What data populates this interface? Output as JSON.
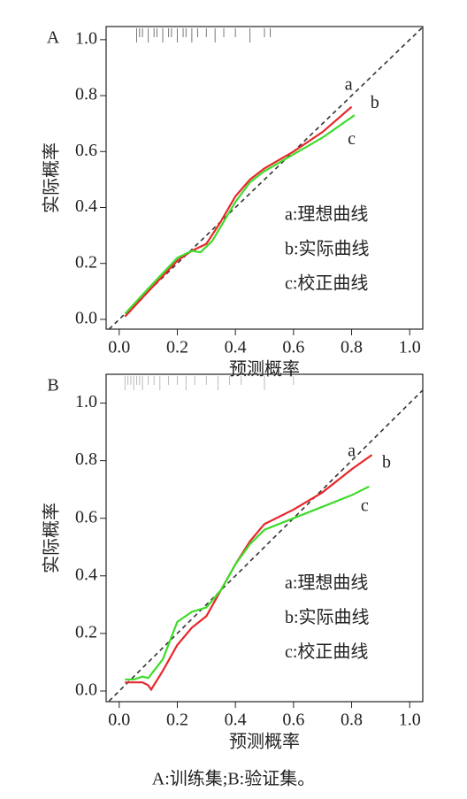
{
  "chart_data": [
    {
      "type": "line",
      "panel": "A",
      "x_label": "预测概率",
      "y_label": "实际概率",
      "xlim": [
        -0.045,
        1.045
      ],
      "ylim": [
        -0.035,
        1.047
      ],
      "xticks": [
        {
          "value": 0,
          "label": "0.0"
        },
        0.2,
        0.4,
        0.6,
        0.8,
        {
          "value": 1,
          "label": "1.0"
        }
      ],
      "yticks": [
        {
          "value": 0,
          "label": "0.0"
        },
        0.2,
        0.4,
        0.6,
        0.8,
        {
          "value": 1,
          "label": "1.0"
        }
      ],
      "rug": [
        0.06,
        0.07,
        0.08,
        0.1,
        0.12,
        0.13,
        0.15,
        0.17,
        0.18,
        0.2,
        0.22,
        0.23,
        0.25,
        0.27,
        0.3,
        0.33,
        0.36,
        0.4,
        0.45,
        0.5,
        0.52
      ],
      "rug_color": "#777777",
      "series": [
        {
          "name": "a:理想曲线",
          "label": "a",
          "label_x": 0.79,
          "label_y": 0.835,
          "color": "#333333",
          "style": "dashed",
          "x": [
            -0.035,
            1.045
          ],
          "values": [
            -0.035,
            1.045
          ]
        },
        {
          "name": "b:实际曲线",
          "label": "b",
          "label_x": 0.88,
          "label_y": 0.77,
          "color": "#e8262b",
          "style": "solid",
          "x": [
            0.02,
            0.1,
            0.2,
            0.25,
            0.3,
            0.35,
            0.4,
            0.45,
            0.5,
            0.6,
            0.7,
            0.8
          ],
          "values": [
            0.01,
            0.1,
            0.21,
            0.245,
            0.27,
            0.35,
            0.44,
            0.5,
            0.54,
            0.6,
            0.67,
            0.76
          ]
        },
        {
          "name": "c:校正曲线",
          "label": "c",
          "label_x": 0.8,
          "label_y": 0.64,
          "color": "#3ddc2a",
          "style": "solid",
          "x": [
            0.02,
            0.1,
            0.2,
            0.25,
            0.28,
            0.32,
            0.4,
            0.45,
            0.5,
            0.6,
            0.7,
            0.81
          ],
          "values": [
            0.02,
            0.11,
            0.22,
            0.245,
            0.24,
            0.28,
            0.42,
            0.49,
            0.53,
            0.59,
            0.65,
            0.73
          ]
        }
      ]
    },
    {
      "type": "line",
      "panel": "B",
      "x_label": "预测概率",
      "y_label": "实际概率",
      "xlim": [
        -0.045,
        1.045
      ],
      "ylim": [
        -0.037,
        1.1
      ],
      "xticks": [
        {
          "value": 0,
          "label": "0.0"
        },
        0.2,
        0.4,
        0.6,
        0.8,
        {
          "value": 1,
          "label": "1.0"
        }
      ],
      "yticks": [
        {
          "value": 0,
          "label": "0.0"
        },
        0.2,
        0.4,
        0.6,
        0.8,
        {
          "value": 1,
          "label": "1.0"
        }
      ],
      "rug": [
        0.02,
        0.03,
        0.04,
        0.05,
        0.06,
        0.07,
        0.08,
        0.1,
        0.12,
        0.14,
        0.17,
        0.2,
        0.23,
        0.26,
        0.3,
        0.34,
        0.38,
        0.42,
        0.5,
        0.6
      ],
      "rug_color": "#bbbbbb",
      "series": [
        {
          "name": "a:理想曲线",
          "label": "a",
          "label_x": 0.8,
          "label_y": 0.83,
          "color": "#333333",
          "style": "dashed",
          "x": [
            -0.035,
            1.095
          ],
          "values": [
            -0.035,
            1.095
          ]
        },
        {
          "name": "b:实际曲线",
          "label": "b",
          "label_x": 0.92,
          "label_y": 0.79,
          "color": "#e8262b",
          "style": "solid",
          "x": [
            0.02,
            0.08,
            0.1,
            0.11,
            0.15,
            0.2,
            0.25,
            0.3,
            0.35,
            0.4,
            0.45,
            0.5,
            0.6,
            0.7,
            0.8,
            0.87
          ],
          "values": [
            0.03,
            0.03,
            0.02,
            0.005,
            0.07,
            0.16,
            0.22,
            0.26,
            0.35,
            0.44,
            0.52,
            0.58,
            0.63,
            0.69,
            0.77,
            0.82
          ]
        },
        {
          "name": "c:校正曲线",
          "label": "c",
          "label_x": 0.845,
          "label_y": 0.64,
          "color": "#3ddc2a",
          "style": "solid",
          "x": [
            0.02,
            0.05,
            0.08,
            0.1,
            0.15,
            0.2,
            0.25,
            0.3,
            0.35,
            0.4,
            0.45,
            0.5,
            0.6,
            0.7,
            0.8,
            0.86
          ],
          "values": [
            0.04,
            0.04,
            0.05,
            0.045,
            0.11,
            0.24,
            0.275,
            0.29,
            0.35,
            0.44,
            0.51,
            0.56,
            0.6,
            0.64,
            0.68,
            0.71
          ]
        }
      ]
    }
  ],
  "caption": "A:训练集;B:验证集。"
}
